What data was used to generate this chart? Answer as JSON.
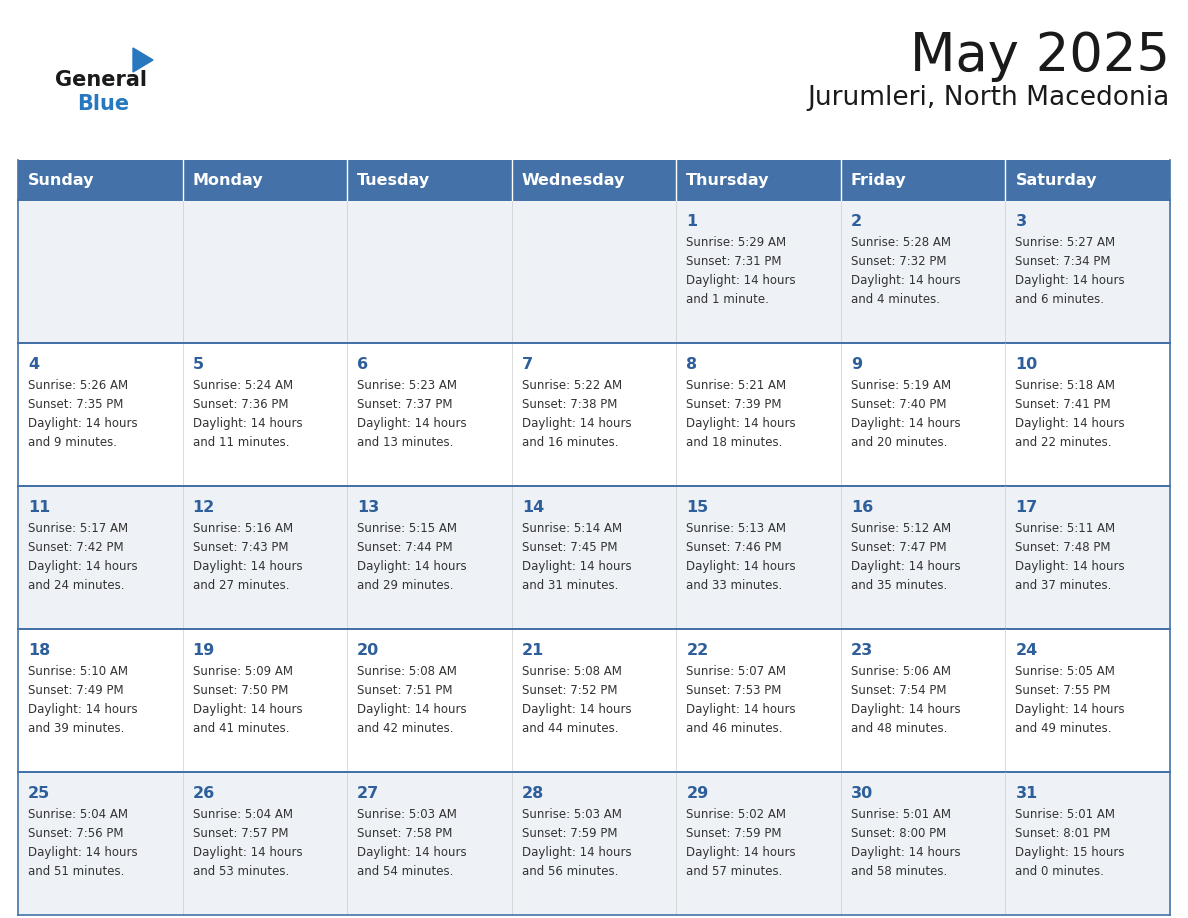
{
  "title": "May 2025",
  "subtitle": "Jurumleri, North Macedonia",
  "days_of_week": [
    "Sunday",
    "Monday",
    "Tuesday",
    "Wednesday",
    "Thursday",
    "Friday",
    "Saturday"
  ],
  "header_bg": "#4472A8",
  "header_text": "#FFFFFF",
  "cell_bg_odd": "#EEF2F7",
  "cell_bg_even": "#FFFFFF",
  "cell_border": "#4472A8",
  "day_number_color": "#2E5F9A",
  "text_color": "#333333",
  "title_color": "#1a1a1a",
  "logo_text_color": "#1a1a1a",
  "logo_blue_color": "#2878C0",
  "triangle_color": "#2878C0",
  "weeks": [
    [
      null,
      null,
      null,
      null,
      {
        "day": 1,
        "sunrise": "5:29 AM",
        "sunset": "7:31 PM",
        "daylight": "14 hours and 1 minute."
      },
      {
        "day": 2,
        "sunrise": "5:28 AM",
        "sunset": "7:32 PM",
        "daylight": "14 hours and 4 minutes."
      },
      {
        "day": 3,
        "sunrise": "5:27 AM",
        "sunset": "7:34 PM",
        "daylight": "14 hours and 6 minutes."
      }
    ],
    [
      {
        "day": 4,
        "sunrise": "5:26 AM",
        "sunset": "7:35 PM",
        "daylight": "14 hours and 9 minutes."
      },
      {
        "day": 5,
        "sunrise": "5:24 AM",
        "sunset": "7:36 PM",
        "daylight": "14 hours and 11 minutes."
      },
      {
        "day": 6,
        "sunrise": "5:23 AM",
        "sunset": "7:37 PM",
        "daylight": "14 hours and 13 minutes."
      },
      {
        "day": 7,
        "sunrise": "5:22 AM",
        "sunset": "7:38 PM",
        "daylight": "14 hours and 16 minutes."
      },
      {
        "day": 8,
        "sunrise": "5:21 AM",
        "sunset": "7:39 PM",
        "daylight": "14 hours and 18 minutes."
      },
      {
        "day": 9,
        "sunrise": "5:19 AM",
        "sunset": "7:40 PM",
        "daylight": "14 hours and 20 minutes."
      },
      {
        "day": 10,
        "sunrise": "5:18 AM",
        "sunset": "7:41 PM",
        "daylight": "14 hours and 22 minutes."
      }
    ],
    [
      {
        "day": 11,
        "sunrise": "5:17 AM",
        "sunset": "7:42 PM",
        "daylight": "14 hours and 24 minutes."
      },
      {
        "day": 12,
        "sunrise": "5:16 AM",
        "sunset": "7:43 PM",
        "daylight": "14 hours and 27 minutes."
      },
      {
        "day": 13,
        "sunrise": "5:15 AM",
        "sunset": "7:44 PM",
        "daylight": "14 hours and 29 minutes."
      },
      {
        "day": 14,
        "sunrise": "5:14 AM",
        "sunset": "7:45 PM",
        "daylight": "14 hours and 31 minutes."
      },
      {
        "day": 15,
        "sunrise": "5:13 AM",
        "sunset": "7:46 PM",
        "daylight": "14 hours and 33 minutes."
      },
      {
        "day": 16,
        "sunrise": "5:12 AM",
        "sunset": "7:47 PM",
        "daylight": "14 hours and 35 minutes."
      },
      {
        "day": 17,
        "sunrise": "5:11 AM",
        "sunset": "7:48 PM",
        "daylight": "14 hours and 37 minutes."
      }
    ],
    [
      {
        "day": 18,
        "sunrise": "5:10 AM",
        "sunset": "7:49 PM",
        "daylight": "14 hours and 39 minutes."
      },
      {
        "day": 19,
        "sunrise": "5:09 AM",
        "sunset": "7:50 PM",
        "daylight": "14 hours and 41 minutes."
      },
      {
        "day": 20,
        "sunrise": "5:08 AM",
        "sunset": "7:51 PM",
        "daylight": "14 hours and 42 minutes."
      },
      {
        "day": 21,
        "sunrise": "5:08 AM",
        "sunset": "7:52 PM",
        "daylight": "14 hours and 44 minutes."
      },
      {
        "day": 22,
        "sunrise": "5:07 AM",
        "sunset": "7:53 PM",
        "daylight": "14 hours and 46 minutes."
      },
      {
        "day": 23,
        "sunrise": "5:06 AM",
        "sunset": "7:54 PM",
        "daylight": "14 hours and 48 minutes."
      },
      {
        "day": 24,
        "sunrise": "5:05 AM",
        "sunset": "7:55 PM",
        "daylight": "14 hours and 49 minutes."
      }
    ],
    [
      {
        "day": 25,
        "sunrise": "5:04 AM",
        "sunset": "7:56 PM",
        "daylight": "14 hours and 51 minutes."
      },
      {
        "day": 26,
        "sunrise": "5:04 AM",
        "sunset": "7:57 PM",
        "daylight": "14 hours and 53 minutes."
      },
      {
        "day": 27,
        "sunrise": "5:03 AM",
        "sunset": "7:58 PM",
        "daylight": "14 hours and 54 minutes."
      },
      {
        "day": 28,
        "sunrise": "5:03 AM",
        "sunset": "7:59 PM",
        "daylight": "14 hours and 56 minutes."
      },
      {
        "day": 29,
        "sunrise": "5:02 AM",
        "sunset": "7:59 PM",
        "daylight": "14 hours and 57 minutes."
      },
      {
        "day": 30,
        "sunrise": "5:01 AM",
        "sunset": "8:00 PM",
        "daylight": "14 hours and 58 minutes."
      },
      {
        "day": 31,
        "sunrise": "5:01 AM",
        "sunset": "8:01 PM",
        "daylight": "15 hours and 0 minutes."
      }
    ]
  ]
}
